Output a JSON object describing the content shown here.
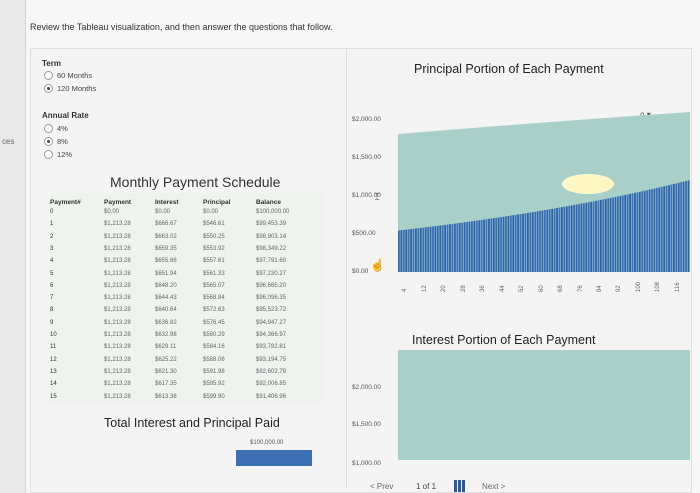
{
  "left_strip_text": "ces",
  "instructions": "Review the Tableau visualization, and then answer the questions that follow.",
  "filters": {
    "term": {
      "label": "Term",
      "options": [
        {
          "label": "60 Months",
          "selected": false
        },
        {
          "label": "120 Months",
          "selected": true
        }
      ]
    },
    "rate": {
      "label": "Annual Rate",
      "options": [
        {
          "label": "4%",
          "selected": false
        },
        {
          "label": "8%",
          "selected": true
        },
        {
          "label": "12%",
          "selected": false
        }
      ]
    }
  },
  "schedule": {
    "title": "Monthly Payment Schedule",
    "headers": [
      "Payment#",
      "Payment",
      "Interest",
      "Principal",
      "Balance"
    ],
    "rows": [
      [
        "0",
        "$0.00",
        "$0.00",
        "$0.00",
        "$100,000.00"
      ],
      [
        "1",
        "$1,213.28",
        "$666.67",
        "$546.61",
        "$99,453.39"
      ],
      [
        "2",
        "$1,213.28",
        "$663.02",
        "$550.25",
        "$98,903.14"
      ],
      [
        "3",
        "$1,213.28",
        "$659.35",
        "$553.92",
        "$98,349.22"
      ],
      [
        "4",
        "$1,213.28",
        "$655.66",
        "$557.61",
        "$97,791.60"
      ],
      [
        "5",
        "$1,213.28",
        "$651.94",
        "$561.33",
        "$97,230.27"
      ],
      [
        "6",
        "$1,213.28",
        "$648.20",
        "$565.07",
        "$96,665.20"
      ],
      [
        "7",
        "$1,213.28",
        "$644.43",
        "$568.84",
        "$96,096.35"
      ],
      [
        "8",
        "$1,213.28",
        "$640.64",
        "$572.63",
        "$95,523.72"
      ],
      [
        "9",
        "$1,213.28",
        "$636.82",
        "$576.45",
        "$94,947.27"
      ],
      [
        "10",
        "$1,213.28",
        "$632.98",
        "$580.29",
        "$94,366.97"
      ],
      [
        "11",
        "$1,213.28",
        "$629.11",
        "$584.16",
        "$93,782.81"
      ],
      [
        "12",
        "$1,213.28",
        "$625.22",
        "$588.06",
        "$93,194.75"
      ],
      [
        "13",
        "$1,213.28",
        "$621.30",
        "$591.98",
        "$92,602.78"
      ],
      [
        "14",
        "$1,213.28",
        "$617.35",
        "$595.92",
        "$92,006.85"
      ],
      [
        "15",
        "$1,213.28",
        "$613.38",
        "$599.90",
        "$91,406.96"
      ]
    ]
  },
  "total": {
    "title": "Total Interest and Principal Paid",
    "label": "$100,000.00",
    "bar_color": "#3c6fb4"
  },
  "dropdown_icon": "chevron-down-icon",
  "chart_data": [
    {
      "type": "bar",
      "title": "Principal Portion of Each Payment",
      "y_ticks": [
        "$2,000.00",
        "$1,500.00",
        "$1,000.00",
        "$500.00",
        "$0.00"
      ],
      "x_ticks": [
        "4",
        "12",
        "20",
        "28",
        "36",
        "44",
        "52",
        "60",
        "68",
        "76",
        "84",
        "92",
        "100",
        "108",
        "116"
      ],
      "ylim": [
        0,
        2000
      ],
      "bar_count": 120,
      "values": [
        546.61,
        550.25,
        553.92,
        557.61,
        561.33,
        565.07,
        568.84,
        572.63,
        576.45,
        580.29,
        584.16,
        588.06,
        591.98,
        595.92,
        599.9
      ],
      "bar_color": "#2e62ab",
      "area_color": "#a9cfc9",
      "area_top": 2000,
      "highlight_color": "#fff8c4"
    },
    {
      "type": "area",
      "title": "Interest Portion of Each Payment",
      "y_ticks": [
        "$2,000.00",
        "$1,500.00",
        "$1,000.00"
      ],
      "ylim": [
        1000,
        2000
      ],
      "area_color": "#a9cfc9"
    }
  ],
  "pager": {
    "prev": "< Prev",
    "page": "1 of 1",
    "next": "Next >"
  }
}
